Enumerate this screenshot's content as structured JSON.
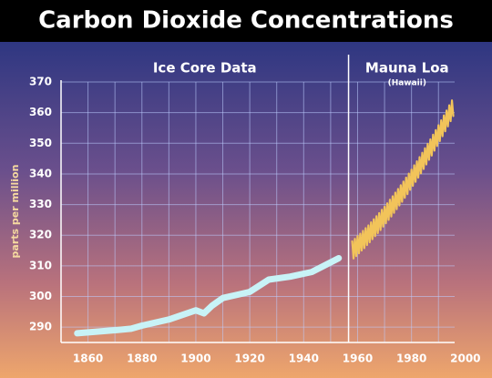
{
  "chart_data": {
    "type": "line",
    "title": "Carbon Dioxide Concentrations",
    "y_label": "parts per million",
    "xlim": [
      1850,
      1996
    ],
    "xticks": [
      1860,
      1880,
      1900,
      1920,
      1940,
      1960,
      1980,
      2000
    ],
    "x_minor_ticks": [
      1850,
      1870,
      1890,
      1910,
      1930,
      1950,
      1970,
      1990
    ],
    "ylim": [
      285,
      370
    ],
    "yticks": [
      290,
      300,
      310,
      320,
      330,
      340,
      350,
      360,
      370
    ],
    "grid": true,
    "series": [
      {
        "name": "Ice Core Data",
        "color": "#c8f3f7",
        "x": [
          1856,
          1870,
          1876,
          1880,
          1890,
          1900,
          1903,
          1906,
          1910,
          1920,
          1927,
          1935,
          1943,
          1953
        ],
        "values": [
          288,
          289,
          289.5,
          290.5,
          292.5,
          295.5,
          294.5,
          297,
          299.5,
          301.5,
          305.5,
          306.5,
          308,
          312.5
        ]
      },
      {
        "name": "Mauna Loa",
        "note": "(Hawaii)",
        "color": "#f2c45a",
        "x": [
          1958,
          1958.5,
          1959,
          1959.5,
          1960,
          1960.5,
          1961,
          1961.5,
          1962,
          1962.5,
          1963,
          1963.5,
          1964,
          1964.5,
          1965,
          1965.5,
          1966,
          1966.5,
          1967,
          1967.5,
          1968,
          1968.5,
          1969,
          1969.5,
          1970,
          1970.5,
          1971,
          1971.5,
          1972,
          1972.5,
          1973,
          1973.5,
          1974,
          1974.5,
          1975,
          1975.5,
          1976,
          1976.5,
          1977,
          1977.5,
          1978,
          1978.5,
          1979,
          1979.5,
          1980,
          1980.5,
          1981,
          1981.5,
          1982,
          1982.5,
          1983,
          1983.5,
          1984,
          1984.5,
          1985,
          1985.5,
          1986,
          1986.5,
          1987,
          1987.5,
          1988,
          1988.5,
          1989,
          1989.5,
          1990,
          1990.5,
          1991,
          1991.5,
          1992,
          1992.5,
          1993,
          1993.5,
          1994,
          1994.5,
          1995,
          1995.5
        ],
        "values": [
          318,
          312.4,
          318.8,
          313.2,
          319.7,
          314.1,
          320.5,
          315.0,
          321.4,
          315.8,
          322.3,
          316.8,
          323.2,
          317.7,
          324.2,
          318.7,
          325.2,
          319.7,
          326.2,
          320.7,
          327.2,
          321.7,
          328.3,
          322.8,
          329.3,
          323.9,
          330.4,
          325.0,
          331.6,
          326.1,
          332.7,
          327.3,
          333.9,
          328.5,
          335.1,
          329.7,
          336.3,
          330.9,
          337.5,
          332.2,
          338.8,
          333.4,
          340.1,
          334.8,
          341.4,
          336.1,
          342.8,
          337.4,
          344.1,
          338.8,
          345.5,
          340.2,
          346.9,
          341.6,
          348.4,
          343.1,
          349.8,
          344.6,
          351.3,
          346.0,
          352.8,
          347.6,
          354.3,
          349.1,
          355.9,
          350.7,
          357.5,
          352.3,
          359.1,
          353.9,
          360.7,
          355.5,
          362.4,
          357.2,
          364.0,
          358.9
        ]
      }
    ]
  }
}
